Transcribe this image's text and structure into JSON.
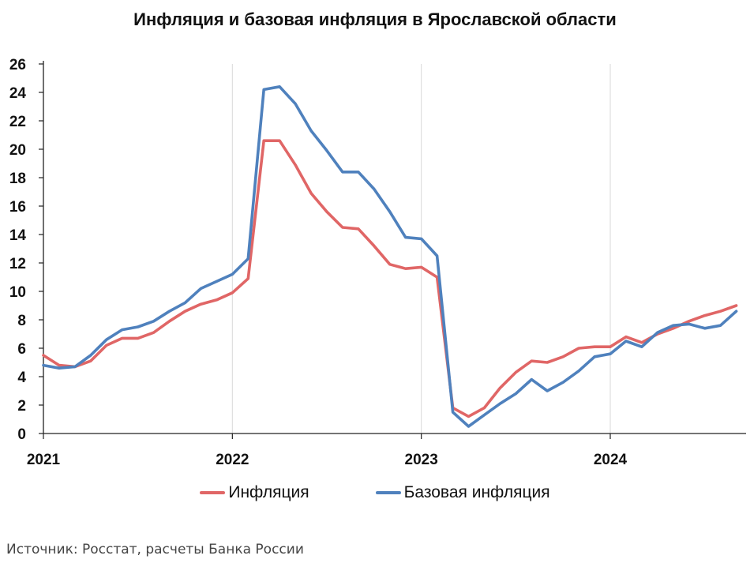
{
  "chart_data": {
    "type": "line",
    "title": "Инфляция и базовая инфляция в Ярославской области",
    "ylim": [
      0,
      26
    ],
    "y_ticks": [
      0,
      2,
      4,
      6,
      8,
      10,
      12,
      14,
      16,
      18,
      20,
      22,
      24,
      26
    ],
    "x_ticks": [
      "2021",
      "2022",
      "2023",
      "2024"
    ],
    "grid": "vertical",
    "legend_position": "bottom",
    "x": [
      "2021-01",
      "2021-02",
      "2021-03",
      "2021-04",
      "2021-05",
      "2021-06",
      "2021-07",
      "2021-08",
      "2021-09",
      "2021-10",
      "2021-11",
      "2021-12",
      "2022-01",
      "2022-02",
      "2022-03",
      "2022-04",
      "2022-05",
      "2022-06",
      "2022-07",
      "2022-08",
      "2022-09",
      "2022-10",
      "2022-11",
      "2022-12",
      "2023-01",
      "2023-02",
      "2023-03",
      "2023-04",
      "2023-05",
      "2023-06",
      "2023-07",
      "2023-08",
      "2023-09",
      "2023-10",
      "2023-11",
      "2023-12",
      "2024-01",
      "2024-02",
      "2024-03",
      "2024-04",
      "2024-05",
      "2024-06",
      "2024-07",
      "2024-08",
      "2024-09"
    ],
    "series": [
      {
        "name": "Инфляция",
        "color": "#e06666",
        "values": [
          5.5,
          4.8,
          4.7,
          5.1,
          6.2,
          6.7,
          6.7,
          7.1,
          7.9,
          8.6,
          9.1,
          9.4,
          9.9,
          10.9,
          20.6,
          20.6,
          18.9,
          16.9,
          15.6,
          14.5,
          14.4,
          13.2,
          11.9,
          11.6,
          11.7,
          11.0,
          1.8,
          1.2,
          1.8,
          3.2,
          4.3,
          5.1,
          5.0,
          5.4,
          6.0,
          6.1,
          6.1,
          6.8,
          6.4,
          7.0,
          7.4,
          7.9,
          8.3,
          8.6,
          9.0
        ]
      },
      {
        "name": "Базовая инфляция",
        "color": "#4f81bd",
        "values": [
          4.8,
          4.6,
          4.7,
          5.5,
          6.6,
          7.3,
          7.5,
          7.9,
          8.6,
          9.2,
          10.2,
          10.7,
          11.2,
          12.3,
          24.2,
          24.4,
          23.2,
          21.3,
          19.9,
          18.4,
          18.4,
          17.2,
          15.6,
          13.8,
          13.7,
          12.5,
          1.5,
          0.5,
          1.3,
          2.1,
          2.8,
          3.8,
          3.0,
          3.6,
          4.4,
          5.4,
          5.6,
          6.5,
          6.1,
          7.1,
          7.6,
          7.7,
          7.4,
          7.6,
          8.6
        ]
      }
    ]
  },
  "source_note": "Источник: Росстат, расчеты Банка России"
}
